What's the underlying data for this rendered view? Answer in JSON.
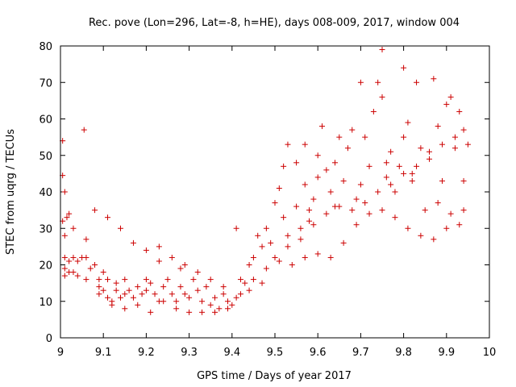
{
  "chart_data": {
    "type": "scatter",
    "title": "Rec. pove (Lon=296, Lat=-8, h=HE), days 008-009, 2017, window 004",
    "xlabel": "GPS time / Days of year 2017",
    "ylabel": "STEC from uqrg / TECUs",
    "xlim": [
      9,
      10
    ],
    "ylim": [
      0,
      80
    ],
    "xticks": [
      "9",
      "9.1",
      "9.2",
      "9.3",
      "9.4",
      "9.5",
      "9.6",
      "9.7",
      "9.8",
      "9.9",
      "10"
    ],
    "yticks": [
      "0",
      "10",
      "20",
      "30",
      "40",
      "50",
      "60",
      "70",
      "80"
    ],
    "grid": false,
    "legend": "none",
    "marker": "plus",
    "color": "#cc0000",
    "series": [
      {
        "points": [
          [
            9.005,
            54
          ],
          [
            9.005,
            44.5
          ],
          [
            9.01,
            40
          ],
          [
            9.005,
            32
          ],
          [
            9.01,
            28
          ],
          [
            9.015,
            33
          ],
          [
            9.02,
            34
          ],
          [
            9.03,
            30
          ],
          [
            9.01,
            22
          ],
          [
            9.02,
            21
          ],
          [
            9.01,
            19
          ],
          [
            9.02,
            18
          ],
          [
            9.03,
            22
          ],
          [
            9.04,
            21
          ],
          [
            9.04,
            17
          ],
          [
            9.05,
            22
          ],
          [
            9.055,
            57
          ],
          [
            9.06,
            27
          ],
          [
            9.06,
            22
          ],
          [
            9.07,
            19
          ],
          [
            9.08,
            20
          ],
          [
            9.09,
            16
          ],
          [
            9.09,
            14
          ],
          [
            9.1,
            18
          ],
          [
            9.1,
            13
          ],
          [
            9.11,
            16
          ],
          [
            9.11,
            11
          ],
          [
            9.12,
            10
          ],
          [
            9.13,
            13
          ],
          [
            9.13,
            15
          ],
          [
            9.14,
            11
          ],
          [
            9.15,
            16
          ],
          [
            9.15,
            12
          ],
          [
            9.16,
            13
          ],
          [
            9.17,
            11
          ],
          [
            9.18,
            14
          ],
          [
            9.19,
            12
          ],
          [
            9.2,
            16
          ],
          [
            9.2,
            13
          ],
          [
            9.21,
            15
          ],
          [
            9.22,
            12
          ],
          [
            9.23,
            10
          ],
          [
            9.23,
            21
          ],
          [
            9.24,
            14
          ],
          [
            9.25,
            16
          ],
          [
            9.26,
            12
          ],
          [
            9.27,
            10
          ],
          [
            9.28,
            19
          ],
          [
            9.28,
            14
          ],
          [
            9.29,
            12
          ],
          [
            9.3,
            11
          ],
          [
            9.31,
            16
          ],
          [
            9.32,
            13
          ],
          [
            9.33,
            10
          ],
          [
            9.34,
            14
          ],
          [
            9.35,
            9
          ],
          [
            9.36,
            11
          ],
          [
            9.37,
            8
          ],
          [
            9.38,
            12
          ],
          [
            9.39,
            10
          ],
          [
            9.4,
            9
          ],
          [
            9.41,
            11
          ],
          [
            9.41,
            30
          ],
          [
            9.42,
            16
          ],
          [
            9.43,
            15
          ],
          [
            9.44,
            20
          ],
          [
            9.45,
            22
          ],
          [
            9.46,
            28
          ],
          [
            9.47,
            25
          ],
          [
            9.48,
            30
          ],
          [
            9.49,
            26
          ],
          [
            9.5,
            37
          ],
          [
            9.5,
            22
          ],
          [
            9.51,
            41
          ],
          [
            9.52,
            47
          ],
          [
            9.53,
            53
          ],
          [
            9.52,
            33
          ],
          [
            9.53,
            28
          ],
          [
            9.55,
            48
          ],
          [
            9.55,
            36
          ],
          [
            9.56,
            30
          ],
          [
            9.57,
            53
          ],
          [
            9.57,
            42
          ],
          [
            9.58,
            35
          ],
          [
            9.59,
            38
          ],
          [
            9.6,
            50
          ],
          [
            9.6,
            44
          ],
          [
            9.61,
            58
          ],
          [
            9.62,
            46
          ],
          [
            9.63,
            40
          ],
          [
            9.64,
            48
          ],
          [
            9.65,
            55
          ],
          [
            9.66,
            43
          ],
          [
            9.67,
            52
          ],
          [
            9.68,
            57
          ],
          [
            9.69,
            38
          ],
          [
            9.7,
            70
          ],
          [
            9.71,
            55
          ],
          [
            9.72,
            47
          ],
          [
            9.73,
            62
          ],
          [
            9.74,
            70
          ],
          [
            9.75,
            79
          ],
          [
            9.75,
            66
          ],
          [
            9.76,
            44
          ],
          [
            9.77,
            51
          ],
          [
            9.78,
            40
          ],
          [
            9.79,
            47
          ],
          [
            9.8,
            74
          ],
          [
            9.8,
            55
          ],
          [
            9.81,
            59
          ],
          [
            9.82,
            45
          ],
          [
            9.83,
            70
          ],
          [
            9.84,
            52
          ],
          [
            9.85,
            35
          ],
          [
            9.86,
            49
          ],
          [
            9.87,
            71
          ],
          [
            9.88,
            58
          ],
          [
            9.89,
            43
          ],
          [
            9.9,
            64
          ],
          [
            9.91,
            66
          ],
          [
            9.92,
            52
          ],
          [
            9.93,
            62
          ],
          [
            9.94,
            57
          ],
          [
            9.94,
            35
          ],
          [
            9.01,
            17
          ],
          [
            9.03,
            18
          ],
          [
            9.06,
            16
          ],
          [
            9.09,
            12
          ],
          [
            9.12,
            9
          ],
          [
            9.15,
            8
          ],
          [
            9.18,
            9
          ],
          [
            9.21,
            7
          ],
          [
            9.24,
            10
          ],
          [
            9.27,
            8
          ],
          [
            9.3,
            7
          ],
          [
            9.33,
            7
          ],
          [
            9.36,
            7
          ],
          [
            9.39,
            8
          ],
          [
            9.42,
            12
          ],
          [
            9.45,
            16
          ],
          [
            9.48,
            19
          ],
          [
            9.51,
            21
          ],
          [
            9.54,
            20
          ],
          [
            9.57,
            22
          ],
          [
            9.6,
            23
          ],
          [
            9.63,
            22
          ],
          [
            9.66,
            26
          ],
          [
            9.69,
            31
          ],
          [
            9.72,
            34
          ],
          [
            9.75,
            35
          ],
          [
            9.78,
            33
          ],
          [
            9.81,
            30
          ],
          [
            9.84,
            28
          ],
          [
            9.87,
            27
          ],
          [
            9.9,
            30
          ],
          [
            9.93,
            31
          ],
          [
            9.08,
            35
          ],
          [
            9.11,
            33
          ],
          [
            9.14,
            30
          ],
          [
            9.17,
            26
          ],
          [
            9.2,
            24
          ],
          [
            9.23,
            25
          ],
          [
            9.26,
            22
          ],
          [
            9.29,
            20
          ],
          [
            9.32,
            18
          ],
          [
            9.35,
            16
          ],
          [
            9.38,
            14
          ],
          [
            9.44,
            13
          ],
          [
            9.47,
            15
          ],
          [
            9.53,
            25
          ],
          [
            9.56,
            27
          ],
          [
            9.59,
            31
          ],
          [
            9.62,
            34
          ],
          [
            9.65,
            36
          ],
          [
            9.68,
            35
          ],
          [
            9.71,
            37
          ],
          [
            9.74,
            40
          ],
          [
            9.77,
            42
          ],
          [
            9.8,
            45
          ],
          [
            9.83,
            47
          ],
          [
            9.86,
            51
          ],
          [
            9.89,
            53
          ],
          [
            9.92,
            55
          ],
          [
            9.95,
            53
          ],
          [
            9.58,
            32
          ],
          [
            9.64,
            36
          ],
          [
            9.7,
            42
          ],
          [
            9.76,
            48
          ],
          [
            9.82,
            43
          ],
          [
            9.88,
            37
          ],
          [
            9.91,
            34
          ],
          [
            9.94,
            43
          ]
        ]
      }
    ]
  }
}
